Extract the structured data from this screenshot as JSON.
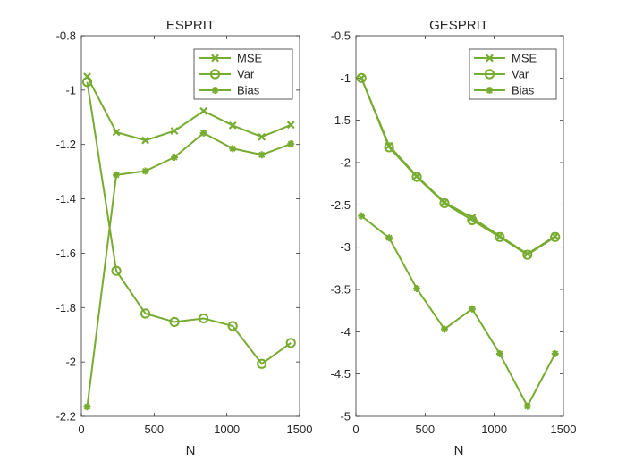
{
  "chart_data": [
    {
      "type": "line",
      "title": "ESPRIT",
      "xlabel": "N",
      "ylabel": "",
      "xlim": [
        0,
        1500
      ],
      "ylim": [
        -2.2,
        -0.8
      ],
      "xticks": [
        0,
        500,
        1000,
        1500
      ],
      "yticks": [
        -2.2,
        -2,
        -1.8,
        -1.6,
        -1.4,
        -1.2,
        -1,
        -0.8
      ],
      "x": [
        40,
        240,
        440,
        640,
        840,
        1040,
        1240,
        1440
      ],
      "legend_position": "top-right",
      "grid": false,
      "color": "#77ac30",
      "series": [
        {
          "name": "MSE",
          "marker": "x",
          "values": [
            -0.95,
            -1.155,
            -1.185,
            -1.15,
            -1.077,
            -1.13,
            -1.172,
            -1.128
          ]
        },
        {
          "name": "Var",
          "marker": "o",
          "values": [
            -0.97,
            -1.665,
            -1.822,
            -1.853,
            -1.84,
            -1.868,
            -2.007,
            -1.93
          ]
        },
        {
          "name": "Bias",
          "marker": "*",
          "values": [
            -2.165,
            -1.312,
            -1.298,
            -1.247,
            -1.158,
            -1.215,
            -1.238,
            -1.198
          ]
        }
      ]
    },
    {
      "type": "line",
      "title": "GESPRIT",
      "xlabel": "N",
      "ylabel": "",
      "xlim": [
        0,
        1500
      ],
      "ylim": [
        -5,
        -0.5
      ],
      "xticks": [
        0,
        500,
        1000,
        1500
      ],
      "yticks": [
        -5,
        -4.5,
        -4,
        -3.5,
        -3,
        -2.5,
        -2,
        -1.5,
        -1,
        -0.5
      ],
      "x": [
        40,
        240,
        440,
        640,
        840,
        1040,
        1240,
        1440
      ],
      "legend_position": "top-right",
      "grid": false,
      "color": "#77ac30",
      "series": [
        {
          "name": "MSE",
          "marker": "x",
          "values": [
            -1.0,
            -1.8,
            -2.16,
            -2.47,
            -2.65,
            -2.87,
            -3.08,
            -2.87
          ]
        },
        {
          "name": "Var",
          "marker": "o",
          "values": [
            -1.0,
            -1.82,
            -2.17,
            -2.48,
            -2.68,
            -2.88,
            -3.09,
            -2.88
          ]
        },
        {
          "name": "Bias",
          "marker": "*",
          "values": [
            -2.63,
            -2.89,
            -3.49,
            -3.97,
            -3.73,
            -4.26,
            -4.88,
            -4.26
          ]
        }
      ]
    }
  ]
}
